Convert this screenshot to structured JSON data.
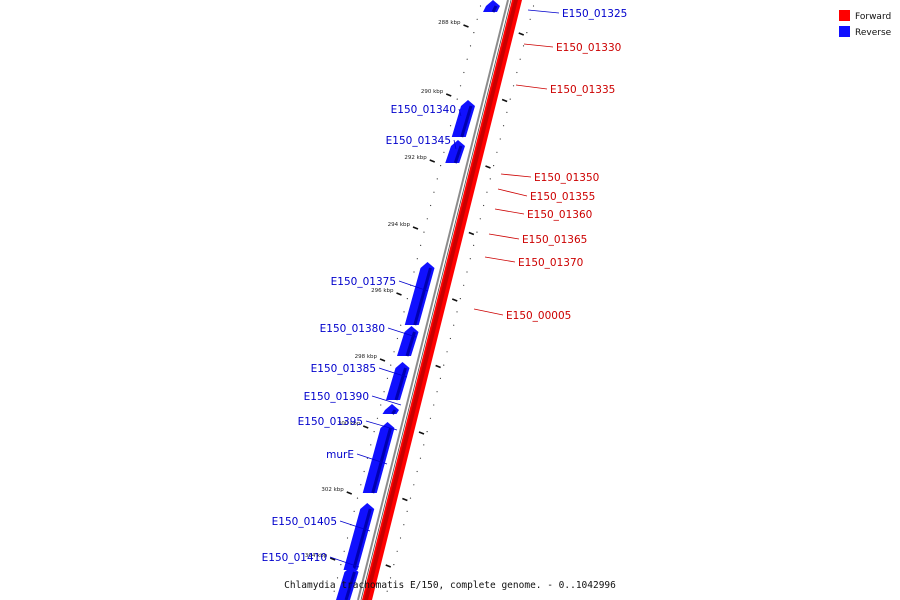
{
  "colors": {
    "forward": "#ff0000",
    "forward_dark": "#c80000",
    "reverse": "#1010ff",
    "reverse_dark": "#0000b0",
    "forward_label": "#cc0000",
    "reverse_label": "#0000cc",
    "axis": "#8c8c8c"
  },
  "legend": {
    "forward": "Forward",
    "reverse": "Reverse"
  },
  "caption": "Chlamydia trachomatis E/150, complete genome. - 0..1042996",
  "tick_labels": [
    "288 kbp",
    "290 kbp",
    "292 kbp",
    "294 kbp",
    "296 kbp",
    "298 kbp",
    "300 kbp",
    "302 kbp",
    "304 kbp"
  ],
  "forward_genes": [
    {
      "label": "E150_01330"
    },
    {
      "label": "E150_01335"
    },
    {
      "label": "E150_01350"
    },
    {
      "label": "E150_01355"
    },
    {
      "label": "E150_01360"
    },
    {
      "label": "E150_01365"
    },
    {
      "label": "E150_01370"
    },
    {
      "label": "E150_00005"
    }
  ],
  "reverse_genes": [
    {
      "label": "E150_01325"
    },
    {
      "label": "E150_01340"
    },
    {
      "label": "E150_01345"
    },
    {
      "label": "E150_01375"
    },
    {
      "label": "E150_01380"
    },
    {
      "label": "E150_01385"
    },
    {
      "label": "E150_01390"
    },
    {
      "label": "E150_01395"
    },
    {
      "label": "murE"
    },
    {
      "label": "E150_01405"
    },
    {
      "label": "E150_01410"
    }
  ]
}
